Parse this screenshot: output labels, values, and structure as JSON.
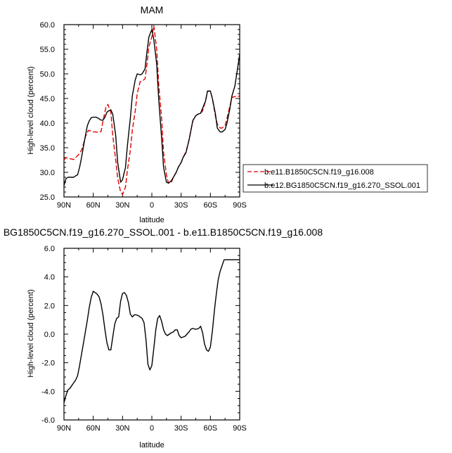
{
  "colors": {
    "control": "#e00000",
    "experiment": "#000000",
    "diff": "#000000"
  },
  "chart_data": [
    {
      "type": "line",
      "title": "MAM",
      "xlabel": "latitude",
      "ylabel": "High-level cloud (percent)",
      "xlim": [
        90,
        -90
      ],
      "ylim": [
        25,
        60
      ],
      "x_ticks": [
        90,
        60,
        30,
        0,
        -30,
        -60,
        -90
      ],
      "x_tick_labels": [
        "90N",
        "60N",
        "30N",
        "0",
        "30S",
        "60S",
        "90S"
      ],
      "y_ticks": [
        25,
        30,
        35,
        40,
        45,
        50,
        55,
        60
      ],
      "y_tick_labels": [
        "25.0",
        "30.0",
        "35.0",
        "40.0",
        "45.0",
        "50.0",
        "55.0",
        "60.0"
      ],
      "legend": {
        "placement": "right"
      },
      "series": [
        {
          "name": "b.e11.B1850C5CN.f19_g16.008",
          "style": "dashed",
          "x": [
            90,
            88,
            85,
            82,
            80,
            78,
            75,
            72,
            70,
            68,
            65,
            62,
            60,
            57,
            55,
            52,
            50,
            47,
            45,
            42,
            40,
            37,
            35,
            32,
            30,
            27,
            25,
            22,
            20,
            17,
            15,
            12,
            10,
            7,
            5,
            3,
            0,
            -2,
            -5,
            -7,
            -10,
            -12,
            -15,
            -17,
            -20,
            -22,
            -25,
            -27,
            -30,
            -32,
            -35,
            -38,
            -40,
            -42,
            -45,
            -47,
            -50,
            -52,
            -55,
            -57,
            -60,
            -62,
            -65,
            -67,
            -70,
            -72,
            -75,
            -77,
            -80,
            -82,
            -85,
            -87,
            -90
          ],
          "y": [
            32.5,
            33.0,
            32.8,
            32.7,
            32.6,
            33.0,
            33.6,
            34.5,
            35.8,
            37.3,
            38.5,
            38.4,
            38.2,
            38.2,
            38.1,
            38.3,
            40.5,
            43.2,
            43.8,
            42.2,
            37.5,
            32.5,
            28.8,
            26.0,
            25.5,
            27.0,
            30.5,
            34.5,
            38.5,
            42.5,
            46.0,
            48.4,
            48.5,
            49.0,
            52.0,
            55.5,
            57.5,
            59.8,
            55.0,
            48.0,
            41.0,
            34.0,
            29.5,
            27.8,
            28.0,
            29.0,
            30.0,
            31.0,
            32.0,
            33.0,
            34.2,
            36.5,
            38.5,
            40.5,
            41.5,
            41.8,
            42.0,
            42.5,
            44.5,
            46.5,
            46.5,
            45.0,
            41.5,
            39.8,
            39.0,
            39.0,
            39.5,
            41.0,
            43.5,
            45.2,
            45.4,
            45.4,
            45.5
          ]
        },
        {
          "name": "b.e12.BG1850C5CN.f19_g16.270_SSOL.001",
          "style": "solid",
          "x": [
            90,
            88,
            86,
            84,
            82,
            80,
            78,
            76,
            74,
            72,
            70,
            68,
            66,
            64,
            62,
            60,
            57,
            55,
            52,
            50,
            48,
            46,
            45,
            42,
            40,
            37,
            35,
            32,
            30,
            27,
            25,
            22,
            20,
            17,
            15,
            12,
            10,
            7,
            5,
            3,
            0,
            -2,
            -5,
            -7,
            -10,
            -12,
            -15,
            -17,
            -20,
            -22,
            -25,
            -27,
            -30,
            -32,
            -35,
            -38,
            -40,
            -42,
            -45,
            -47,
            -50,
            -52,
            -55,
            -57,
            -60,
            -62,
            -65,
            -67,
            -70,
            -72,
            -75,
            -77,
            -80,
            -82,
            -85,
            -87,
            -90
          ],
          "y": [
            27.3,
            28.7,
            29.0,
            29.0,
            29.0,
            29.0,
            29.3,
            29.5,
            31.0,
            33.0,
            35.3,
            37.5,
            39.5,
            40.5,
            41.1,
            41.2,
            41.2,
            41.0,
            40.6,
            40.6,
            41.2,
            42.2,
            42.4,
            42.7,
            41.8,
            37.5,
            32.0,
            28.0,
            28.5,
            31.0,
            35.5,
            41.0,
            45.5,
            48.8,
            50.0,
            49.8,
            50.0,
            51.0,
            54.5,
            57.5,
            59.0,
            57.0,
            52.0,
            45.0,
            37.0,
            31.0,
            28.0,
            27.8,
            28.3,
            29.0,
            30.0,
            31.0,
            32.0,
            33.0,
            34.0,
            36.5,
            38.5,
            40.5,
            41.5,
            41.8,
            42.0,
            43.0,
            44.5,
            46.5,
            46.5,
            45.0,
            42.0,
            39.0,
            38.2,
            38.2,
            38.7,
            40.0,
            43.0,
            45.5,
            47.5,
            50.0,
            54.0
          ]
        }
      ]
    },
    {
      "type": "line",
      "title": "BG1850C5CN.f19_g16.270_SSOL.001 - b.e11.B1850C5CN.f19_g16.008",
      "xlabel": "latitude",
      "ylabel": "High-level cloud (percent)",
      "xlim": [
        90,
        -90
      ],
      "ylim": [
        -6,
        6
      ],
      "x_ticks": [
        90,
        60,
        30,
        0,
        -30,
        -60,
        -90
      ],
      "x_tick_labels": [
        "90N",
        "60N",
        "30N",
        "0",
        "30S",
        "60S",
        "90S"
      ],
      "y_ticks": [
        -6,
        -4,
        -2,
        0,
        2,
        4,
        6
      ],
      "y_tick_labels": [
        "-6.0",
        "-4.0",
        "-2.0",
        "0.0",
        "2.0",
        "4.0",
        "6.0"
      ],
      "series": [
        {
          "style": "solid",
          "x": [
            90,
            88,
            86,
            84,
            82,
            80,
            78,
            76,
            74,
            72,
            70,
            68,
            66,
            64,
            62,
            60,
            58,
            56,
            54,
            52,
            50,
            48,
            46,
            44,
            42,
            40,
            38,
            36,
            34,
            32,
            30,
            28,
            26,
            24,
            22,
            20,
            18,
            16,
            14,
            12,
            10,
            8,
            6,
            4,
            2,
            0,
            -2,
            -4,
            -6,
            -8,
            -10,
            -12,
            -14,
            -16,
            -18,
            -20,
            -22,
            -24,
            -26,
            -28,
            -30,
            -32,
            -34,
            -36,
            -38,
            -40,
            -42,
            -44,
            -46,
            -48,
            -50,
            -52,
            -54,
            -56,
            -58,
            -60,
            -62,
            -64,
            -66,
            -68,
            -70,
            -72,
            -74,
            -76,
            -78,
            -80,
            -82,
            -84,
            -86,
            -88,
            -90
          ],
          "y": [
            -4.8,
            -4.3,
            -3.9,
            -3.8,
            -3.6,
            -3.4,
            -3.2,
            -2.9,
            -2.2,
            -1.4,
            -0.6,
            0.2,
            1.0,
            1.9,
            2.6,
            3.0,
            2.9,
            2.8,
            2.6,
            2.1,
            1.3,
            0.3,
            -0.6,
            -1.1,
            -1.1,
            -0.2,
            0.7,
            1.1,
            1.2,
            2.3,
            2.85,
            2.9,
            2.7,
            2.2,
            1.4,
            1.2,
            1.35,
            1.35,
            1.3,
            1.2,
            1.1,
            0.8,
            -0.4,
            -2.1,
            -2.5,
            -2.2,
            -1.0,
            0.3,
            1.1,
            1.3,
            0.9,
            0.3,
            0.0,
            -0.1,
            0.0,
            0.1,
            0.15,
            0.3,
            0.3,
            -0.1,
            -0.25,
            -0.2,
            -0.15,
            0.0,
            0.15,
            0.35,
            0.4,
            0.35,
            0.35,
            0.4,
            0.55,
            0.1,
            -0.7,
            -1.1,
            -1.2,
            -0.9,
            0.2,
            1.6,
            2.8,
            3.8,
            4.4,
            4.8,
            5.2,
            5.2,
            5.2,
            5.2,
            5.2,
            5.2,
            5.2,
            5.2,
            5.2
          ]
        }
      ]
    }
  ]
}
